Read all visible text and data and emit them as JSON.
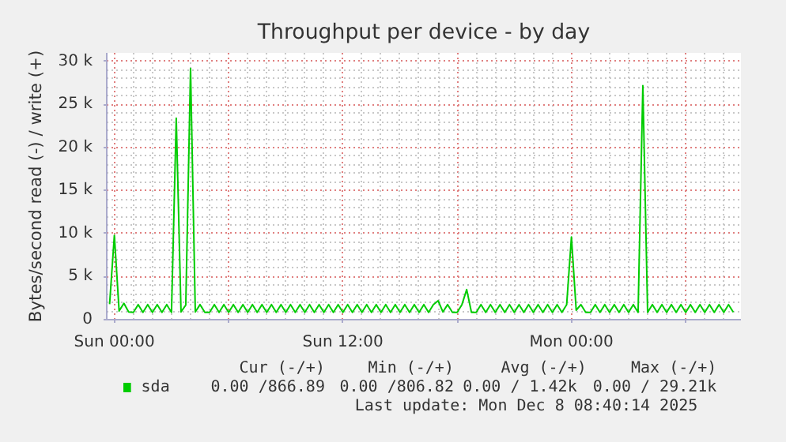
{
  "chart_data": {
    "type": "line",
    "title": "Throughput per device - by day",
    "ylabel": "Bytes/second read (-) / write (+)",
    "x": [
      "2025-12-06T23:45",
      "2025-12-07T00:00",
      "2025-12-07T00:15",
      "2025-12-07T00:30",
      "2025-12-07T00:45",
      "2025-12-07T01:00",
      "2025-12-07T01:15",
      "2025-12-07T01:30",
      "2025-12-07T01:45",
      "2025-12-07T02:00",
      "2025-12-07T02:15",
      "2025-12-07T02:30",
      "2025-12-07T02:45",
      "2025-12-07T03:00",
      "2025-12-07T03:15",
      "2025-12-07T03:30",
      "2025-12-07T03:45",
      "2025-12-07T04:00",
      "2025-12-07T04:15",
      "2025-12-07T04:30",
      "2025-12-07T04:45",
      "2025-12-07T05:00",
      "2025-12-07T05:15",
      "2025-12-07T05:30",
      "2025-12-07T05:45",
      "2025-12-07T06:00",
      "2025-12-07T06:15",
      "2025-12-07T06:30",
      "2025-12-07T06:45",
      "2025-12-07T07:00",
      "2025-12-07T07:15",
      "2025-12-07T07:30",
      "2025-12-07T07:45",
      "2025-12-07T08:00",
      "2025-12-07T08:15",
      "2025-12-07T08:30",
      "2025-12-07T08:45",
      "2025-12-07T09:00",
      "2025-12-07T09:15",
      "2025-12-07T09:30",
      "2025-12-07T09:45",
      "2025-12-07T10:00",
      "2025-12-07T10:15",
      "2025-12-07T10:30",
      "2025-12-07T10:45",
      "2025-12-07T11:00",
      "2025-12-07T11:15",
      "2025-12-07T11:30",
      "2025-12-07T11:45",
      "2025-12-07T12:00",
      "2025-12-07T12:15",
      "2025-12-07T12:30",
      "2025-12-07T12:45",
      "2025-12-07T13:00",
      "2025-12-07T13:15",
      "2025-12-07T13:30",
      "2025-12-07T13:45",
      "2025-12-07T14:00",
      "2025-12-07T14:15",
      "2025-12-07T14:30",
      "2025-12-07T14:45",
      "2025-12-07T15:00",
      "2025-12-07T15:15",
      "2025-12-07T15:30",
      "2025-12-07T15:45",
      "2025-12-07T16:00",
      "2025-12-07T16:15",
      "2025-12-07T16:30",
      "2025-12-07T16:45",
      "2025-12-07T17:00",
      "2025-12-07T17:15",
      "2025-12-07T17:30",
      "2025-12-07T17:45",
      "2025-12-07T18:00",
      "2025-12-07T18:15",
      "2025-12-07T18:30",
      "2025-12-07T18:45",
      "2025-12-07T19:00",
      "2025-12-07T19:15",
      "2025-12-07T19:30",
      "2025-12-07T19:45",
      "2025-12-07T20:00",
      "2025-12-07T20:15",
      "2025-12-07T20:30",
      "2025-12-07T20:45",
      "2025-12-07T21:00",
      "2025-12-07T21:15",
      "2025-12-07T21:30",
      "2025-12-07T21:45",
      "2025-12-07T22:00",
      "2025-12-07T22:15",
      "2025-12-07T22:30",
      "2025-12-07T22:45",
      "2025-12-07T23:00",
      "2025-12-07T23:15",
      "2025-12-07T23:30",
      "2025-12-07T23:45",
      "2025-12-08T00:00",
      "2025-12-08T00:15",
      "2025-12-08T00:30",
      "2025-12-08T00:45",
      "2025-12-08T01:00",
      "2025-12-08T01:15",
      "2025-12-08T01:30",
      "2025-12-08T01:45",
      "2025-12-08T02:00",
      "2025-12-08T02:15",
      "2025-12-08T02:30",
      "2025-12-08T02:45",
      "2025-12-08T03:00",
      "2025-12-08T03:15",
      "2025-12-08T03:30",
      "2025-12-08T03:45",
      "2025-12-08T04:00",
      "2025-12-08T04:15",
      "2025-12-08T04:30",
      "2025-12-08T04:45",
      "2025-12-08T05:00",
      "2025-12-08T05:15",
      "2025-12-08T05:30",
      "2025-12-08T05:45",
      "2025-12-08T06:00",
      "2025-12-08T06:15",
      "2025-12-08T06:30",
      "2025-12-08T06:45",
      "2025-12-08T07:00",
      "2025-12-08T07:15",
      "2025-12-08T07:30",
      "2025-12-08T07:45",
      "2025-12-08T08:00",
      "2025-12-08T08:15",
      "2025-12-08T08:30"
    ],
    "series": [
      {
        "name": "sda",
        "color": "#00cc00",
        "values": [
          1800,
          9800,
          1000,
          1900,
          900,
          850,
          1750,
          850,
          1750,
          850,
          1750,
          850,
          1750,
          850,
          23400,
          900,
          1700,
          29200,
          900,
          1750,
          850,
          850,
          1750,
          850,
          1750,
          850,
          1750,
          850,
          1750,
          850,
          1750,
          850,
          1750,
          850,
          1750,
          850,
          1750,
          850,
          1750,
          850,
          1750,
          850,
          1750,
          850,
          1750,
          850,
          1750,
          850,
          1750,
          850,
          1750,
          850,
          1750,
          850,
          1750,
          850,
          1750,
          850,
          1750,
          850,
          1750,
          850,
          1750,
          850,
          1750,
          850,
          1750,
          850,
          1750,
          2200,
          900,
          1750,
          850,
          850,
          1750,
          3500,
          850,
          850,
          1750,
          850,
          1750,
          850,
          1750,
          850,
          1750,
          850,
          1750,
          850,
          1750,
          850,
          1750,
          850,
          1750,
          850,
          1750,
          850,
          1750,
          9600,
          1100,
          1750,
          850,
          850,
          1750,
          850,
          1750,
          850,
          1750,
          850,
          1750,
          850,
          1750,
          850,
          27200,
          850,
          1750,
          850,
          1750,
          850,
          1750,
          850,
          1750,
          850,
          1750,
          850,
          1750,
          850,
          1750,
          850,
          1750,
          850,
          1750,
          867
        ]
      }
    ],
    "xlim": [
      "2025-12-06T23:36",
      "2025-12-08T08:54"
    ],
    "xticks": [
      {
        "value": "2025-12-07T00:00",
        "label": "Sun 00:00"
      },
      {
        "value": "2025-12-07T06:00",
        "label": null
      },
      {
        "value": "2025-12-07T12:00",
        "label": "Sun 12:00"
      },
      {
        "value": "2025-12-07T18:00",
        "label": null
      },
      {
        "value": "2025-12-08T00:00",
        "label": "Mon 00:00"
      },
      {
        "value": "2025-12-08T06:00",
        "label": null
      }
    ],
    "ylim": [
      0,
      31000
    ],
    "yticks": [
      {
        "value": 0,
        "label": "0"
      },
      {
        "value": 5000,
        "label": "5 k"
      },
      {
        "value": 10000,
        "label": "10 k"
      },
      {
        "value": 15000,
        "label": "15 k"
      },
      {
        "value": 20000,
        "label": "20 k"
      },
      {
        "value": 25000,
        "label": "25 k"
      },
      {
        "value": 30000,
        "label": "30 k"
      }
    ],
    "grid": true,
    "legend": "bottom",
    "annotations": [
      "Cur (-/+)",
      "Min (-/+)",
      "Avg (-/+)",
      "Max (-/+)",
      "0.00 /866.89",
      "0.00 /806.82",
      "0.00 /  1.42k",
      "0.00 / 29.21k",
      "Last update:  Mon Dec  8 08:40:14 2025"
    ]
  }
}
